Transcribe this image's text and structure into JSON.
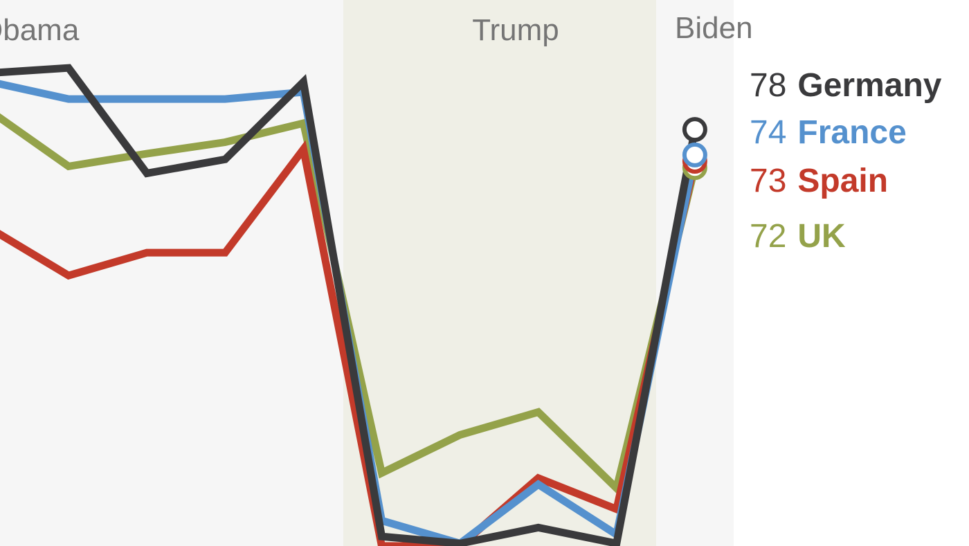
{
  "chart_data": {
    "type": "line",
    "periods": [
      "Obama",
      "Trump",
      "Biden"
    ],
    "categories": [
      null,
      null,
      null,
      null,
      null,
      null,
      null,
      null,
      null,
      null
    ],
    "ylim": [
      12.4,
      98.4
    ],
    "series": [
      {
        "name": "Germany",
        "color": "#3a3a3c",
        "values": [
          86.9,
          87.7,
          71.1,
          73.3,
          85.5,
          13.9,
          12.8,
          15.3,
          12.8,
          78
        ]
      },
      {
        "name": "France",
        "color": "#5591ce",
        "values": [
          85.5,
          82.8,
          82.8,
          82.8,
          83.9,
          16.4,
          12.8,
          22.1,
          14.2,
          74
        ]
      },
      {
        "name": "Spain",
        "color": "#c33a2a",
        "values": [
          62.4,
          55.0,
          58.6,
          58.6,
          74.9,
          12.4,
          12.4,
          23.1,
          18.2,
          73
        ]
      },
      {
        "name": "UK",
        "color": "#94a24a",
        "values": [
          80.9,
          72.2,
          74.2,
          76.0,
          79.0,
          23.9,
          29.9,
          33.5,
          21.5,
          72
        ]
      }
    ]
  }
}
